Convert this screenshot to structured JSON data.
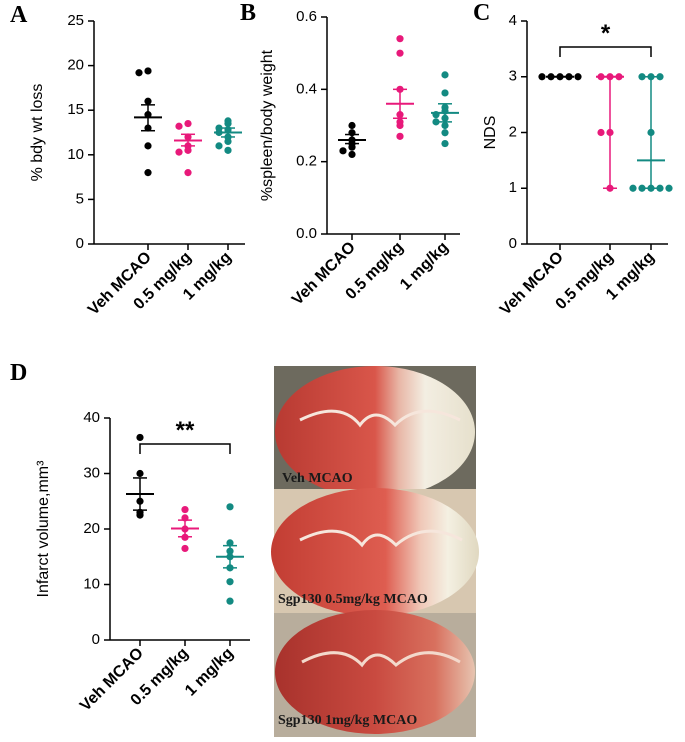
{
  "chart_data": [
    {
      "type": "dot",
      "panel": "A",
      "y_label": "% bdy wt loss",
      "categories": [
        "Veh MCAO",
        "0.5 mg/kg",
        "1 mg/kg"
      ],
      "ylim": [
        0,
        25
      ],
      "yticks": [
        0,
        5,
        10,
        15,
        20,
        25
      ],
      "groups": [
        {
          "color": "#000000",
          "points": [
            19.4,
            19.2,
            16.0,
            14.5,
            13.0,
            11.0,
            8.0
          ],
          "center": 14.2,
          "low": 12.7,
          "high": 15.6
        },
        {
          "color": "#e8197a",
          "points": [
            13.5,
            13.2,
            12.0,
            11.0,
            10.5,
            10.3,
            8.0
          ],
          "center": 11.6,
          "low": 11.0,
          "high": 12.3
        },
        {
          "color": "#138a82",
          "points": [
            13.8,
            13.5,
            13.0,
            12.8,
            12.5,
            12.0,
            11.5,
            11.0,
            10.5
          ],
          "center": 12.5,
          "low": 12.0,
          "high": 13.0
        }
      ]
    },
    {
      "type": "dot",
      "panel": "B",
      "y_label": "%spleen/body weight",
      "categories": [
        "Veh MCAO",
        "0.5 mg/kg",
        "1 mg/kg"
      ],
      "ylim": [
        0,
        0.6
      ],
      "yticks": [
        {
          "value": 0,
          "label": "0.0"
        },
        0.2,
        0.4,
        0.6
      ],
      "groups": [
        {
          "color": "#000000",
          "points": [
            0.3,
            0.28,
            0.26,
            0.25,
            0.24,
            0.23,
            0.22
          ],
          "center": 0.26,
          "low": 0.25,
          "high": 0.275
        },
        {
          "color": "#e8197a",
          "points": [
            0.54,
            0.5,
            0.4,
            0.33,
            0.31,
            0.3,
            0.27
          ],
          "center": 0.36,
          "low": 0.32,
          "high": 0.4
        },
        {
          "color": "#138a82",
          "points": [
            0.44,
            0.39,
            0.35,
            0.34,
            0.33,
            0.32,
            0.31,
            0.3,
            0.28,
            0.25
          ],
          "center": 0.335,
          "low": 0.31,
          "high": 0.36
        }
      ]
    },
    {
      "type": "dot",
      "panel": "C",
      "y_label": "NDS",
      "significance": "*",
      "categories": [
        "Veh MCAO",
        "0.5 mg/kg",
        "1 mg/kg"
      ],
      "ylim": [
        0,
        4
      ],
      "yticks": [
        0,
        1,
        2,
        3,
        4
      ],
      "groups": [
        {
          "color": "#000000",
          "points": [
            3,
            3,
            3,
            3,
            3
          ],
          "center": 3,
          "low": 3,
          "high": 3
        },
        {
          "color": "#e8197a",
          "points": [
            3,
            3,
            3,
            2,
            2,
            1
          ],
          "center": 3,
          "low": 1,
          "high": 3
        },
        {
          "color": "#138a82",
          "points": [
            3,
            3,
            3,
            2,
            1,
            1,
            1,
            1,
            1
          ],
          "center": 1.5,
          "low": 1,
          "high": 3
        }
      ]
    },
    {
      "type": "dot",
      "panel": "D",
      "y_label": "Infarct volume,mm³",
      "significance": "**",
      "categories": [
        "Veh MCAO",
        "0.5 mg/kg",
        "1 mg/kg"
      ],
      "ylim": [
        0,
        40
      ],
      "yticks": [
        0,
        10,
        20,
        30,
        40
      ],
      "groups": [
        {
          "color": "#000000",
          "points": [
            36.5,
            30,
            25,
            23,
            22.5
          ],
          "center": 26.3,
          "low": 23.4,
          "high": 29.2
        },
        {
          "color": "#e8197a",
          "points": [
            23.5,
            22,
            20,
            18.5,
            16.5
          ],
          "center": 20.1,
          "low": 18.6,
          "high": 21.6
        },
        {
          "color": "#138a82",
          "points": [
            24,
            17.5,
            16,
            15,
            13,
            10.5,
            7
          ],
          "center": 15,
          "low": 13,
          "high": 17
        }
      ]
    }
  ],
  "photo_labels": [
    "Veh MCAO",
    "Sgp130 0.5mg/kg MCAO",
    "Sgp130 1mg/kg MCAO"
  ]
}
